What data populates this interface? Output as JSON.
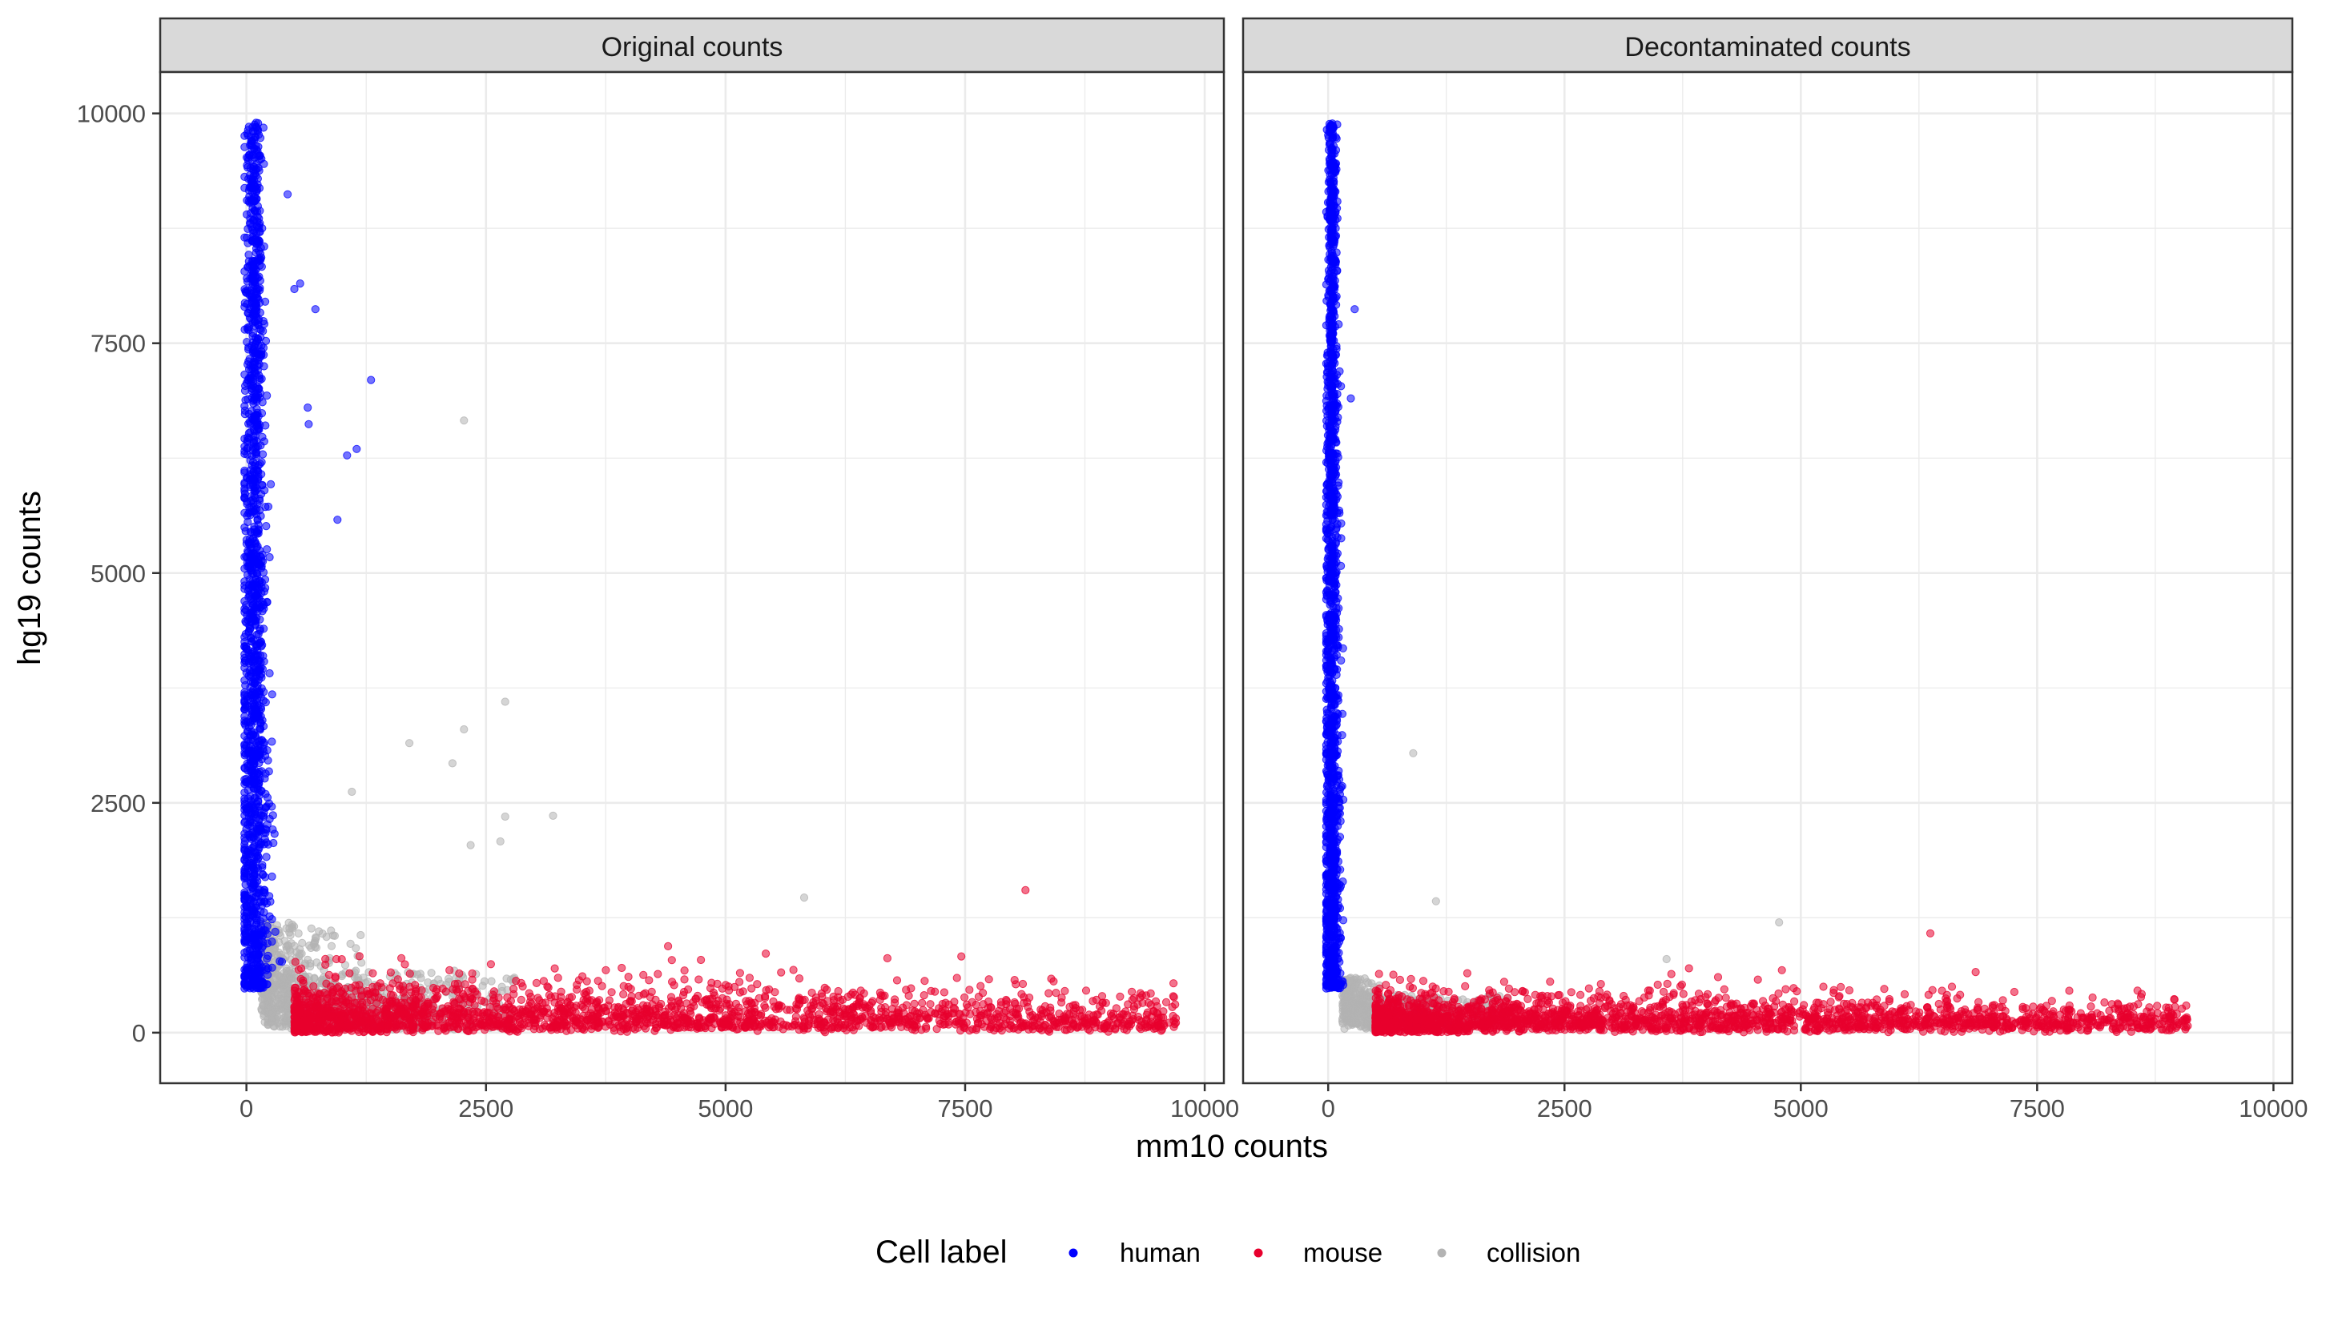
{
  "chart_data": {
    "type": "scatter",
    "xlabel": "mm10 counts",
    "ylabel": "hg19 counts",
    "xlim": [
      -900,
      10200
    ],
    "ylim": [
      -550,
      10450
    ],
    "x_ticks": [
      0,
      2500,
      5000,
      7500,
      10000
    ],
    "y_ticks": [
      0,
      2500,
      5000,
      7500,
      10000
    ],
    "grid": true,
    "legend_position": "bottom",
    "legend_title": "Cell label",
    "series": [
      {
        "name": "human",
        "color": "#0000FF"
      },
      {
        "name": "mouse",
        "color": "#E8002D"
      },
      {
        "name": "collision",
        "color": "#B3B3B3"
      }
    ],
    "panels": [
      {
        "title": "Original counts",
        "human": {
          "y_range": [
            480,
            9900
          ],
          "x_center": 80,
          "x_spread": 80,
          "n": 1500,
          "outliers": [
            [
              1300,
              7100
            ],
            [
              1150,
              6350
            ],
            [
              1050,
              6280
            ],
            [
              950,
              5580
            ],
            [
              720,
              7870
            ],
            [
              640,
              6800
            ],
            [
              650,
              6620
            ],
            [
              560,
              8150
            ],
            [
              500,
              8090
            ],
            [
              430,
              9120
            ]
          ]
        },
        "mouse": {
          "x_range": [
            500,
            9700
          ],
          "y_range": [
            0,
            950
          ],
          "n": 2200,
          "outliers": [
            [
              8130,
              1550
            ],
            [
              7460,
              830
            ],
            [
              5420,
              860
            ],
            [
              4400,
              940
            ]
          ]
        },
        "collision": {
          "n": 900,
          "outliers": [
            [
              2270,
              6660
            ],
            [
              2700,
              3600
            ],
            [
              2270,
              3300
            ],
            [
              1700,
              3150
            ],
            [
              2150,
              2930
            ],
            [
              3200,
              2360
            ],
            [
              2700,
              2350
            ],
            [
              1100,
              2620
            ],
            [
              2650,
              2080
            ],
            [
              2340,
              2040
            ],
            [
              5820,
              1470
            ]
          ]
        }
      },
      {
        "title": "Decontaminated counts",
        "human": {
          "y_range": [
            480,
            9900
          ],
          "x_center": 40,
          "x_spread": 45,
          "n": 1500,
          "outliers": [
            [
              280,
              7870
            ],
            [
              240,
              6900
            ]
          ]
        },
        "mouse": {
          "x_range": [
            500,
            9100
          ],
          "y_range": [
            0,
            700
          ],
          "n": 2200,
          "outliers": [
            [
              6370,
              1080
            ],
            [
              6850,
              660
            ],
            [
              4800,
              680
            ]
          ]
        },
        "collision": {
          "n": 500,
          "outliers": [
            [
              900,
              3040
            ],
            [
              1140,
              1430
            ],
            [
              4770,
              1200
            ],
            [
              3580,
              800
            ]
          ]
        }
      }
    ]
  }
}
